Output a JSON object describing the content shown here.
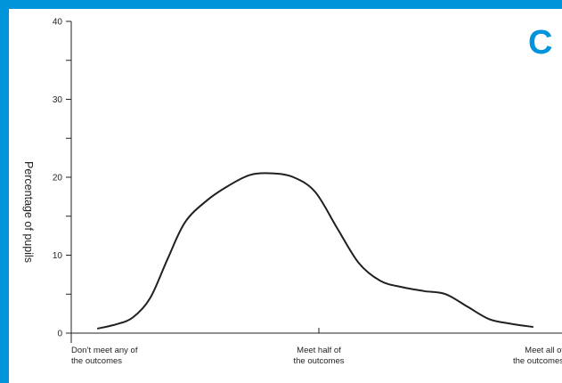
{
  "chart_data": {
    "type": "line",
    "panel_label": "C",
    "ylabel": "Percentage of pupils",
    "ylim": [
      0,
      40
    ],
    "yticks": [
      0,
      10,
      20,
      30,
      40
    ],
    "yminor_ticks": [
      5,
      15,
      25,
      35
    ],
    "categories": [
      [
        "Don’t meet any of",
        "the outcomes"
      ],
      [
        "Meet half of",
        "the outcomes"
      ],
      [
        "Meet all of",
        "the outcomes"
      ]
    ],
    "series": [
      {
        "x": [
          0.0,
          0.04,
          0.08,
          0.12,
          0.16,
          0.2,
          0.25,
          0.3,
          0.35,
          0.4,
          0.45,
          0.5,
          0.55,
          0.6,
          0.65,
          0.7,
          0.75,
          0.8,
          0.85,
          0.9,
          0.95,
          1.0
        ],
        "values": [
          0.6,
          1.1,
          2.0,
          4.5,
          9.5,
          14.2,
          17.0,
          18.9,
          20.3,
          20.5,
          20.0,
          18.1,
          13.5,
          9.0,
          6.7,
          5.9,
          5.4,
          5.0,
          3.4,
          1.8,
          1.2,
          0.8
        ]
      }
    ]
  }
}
